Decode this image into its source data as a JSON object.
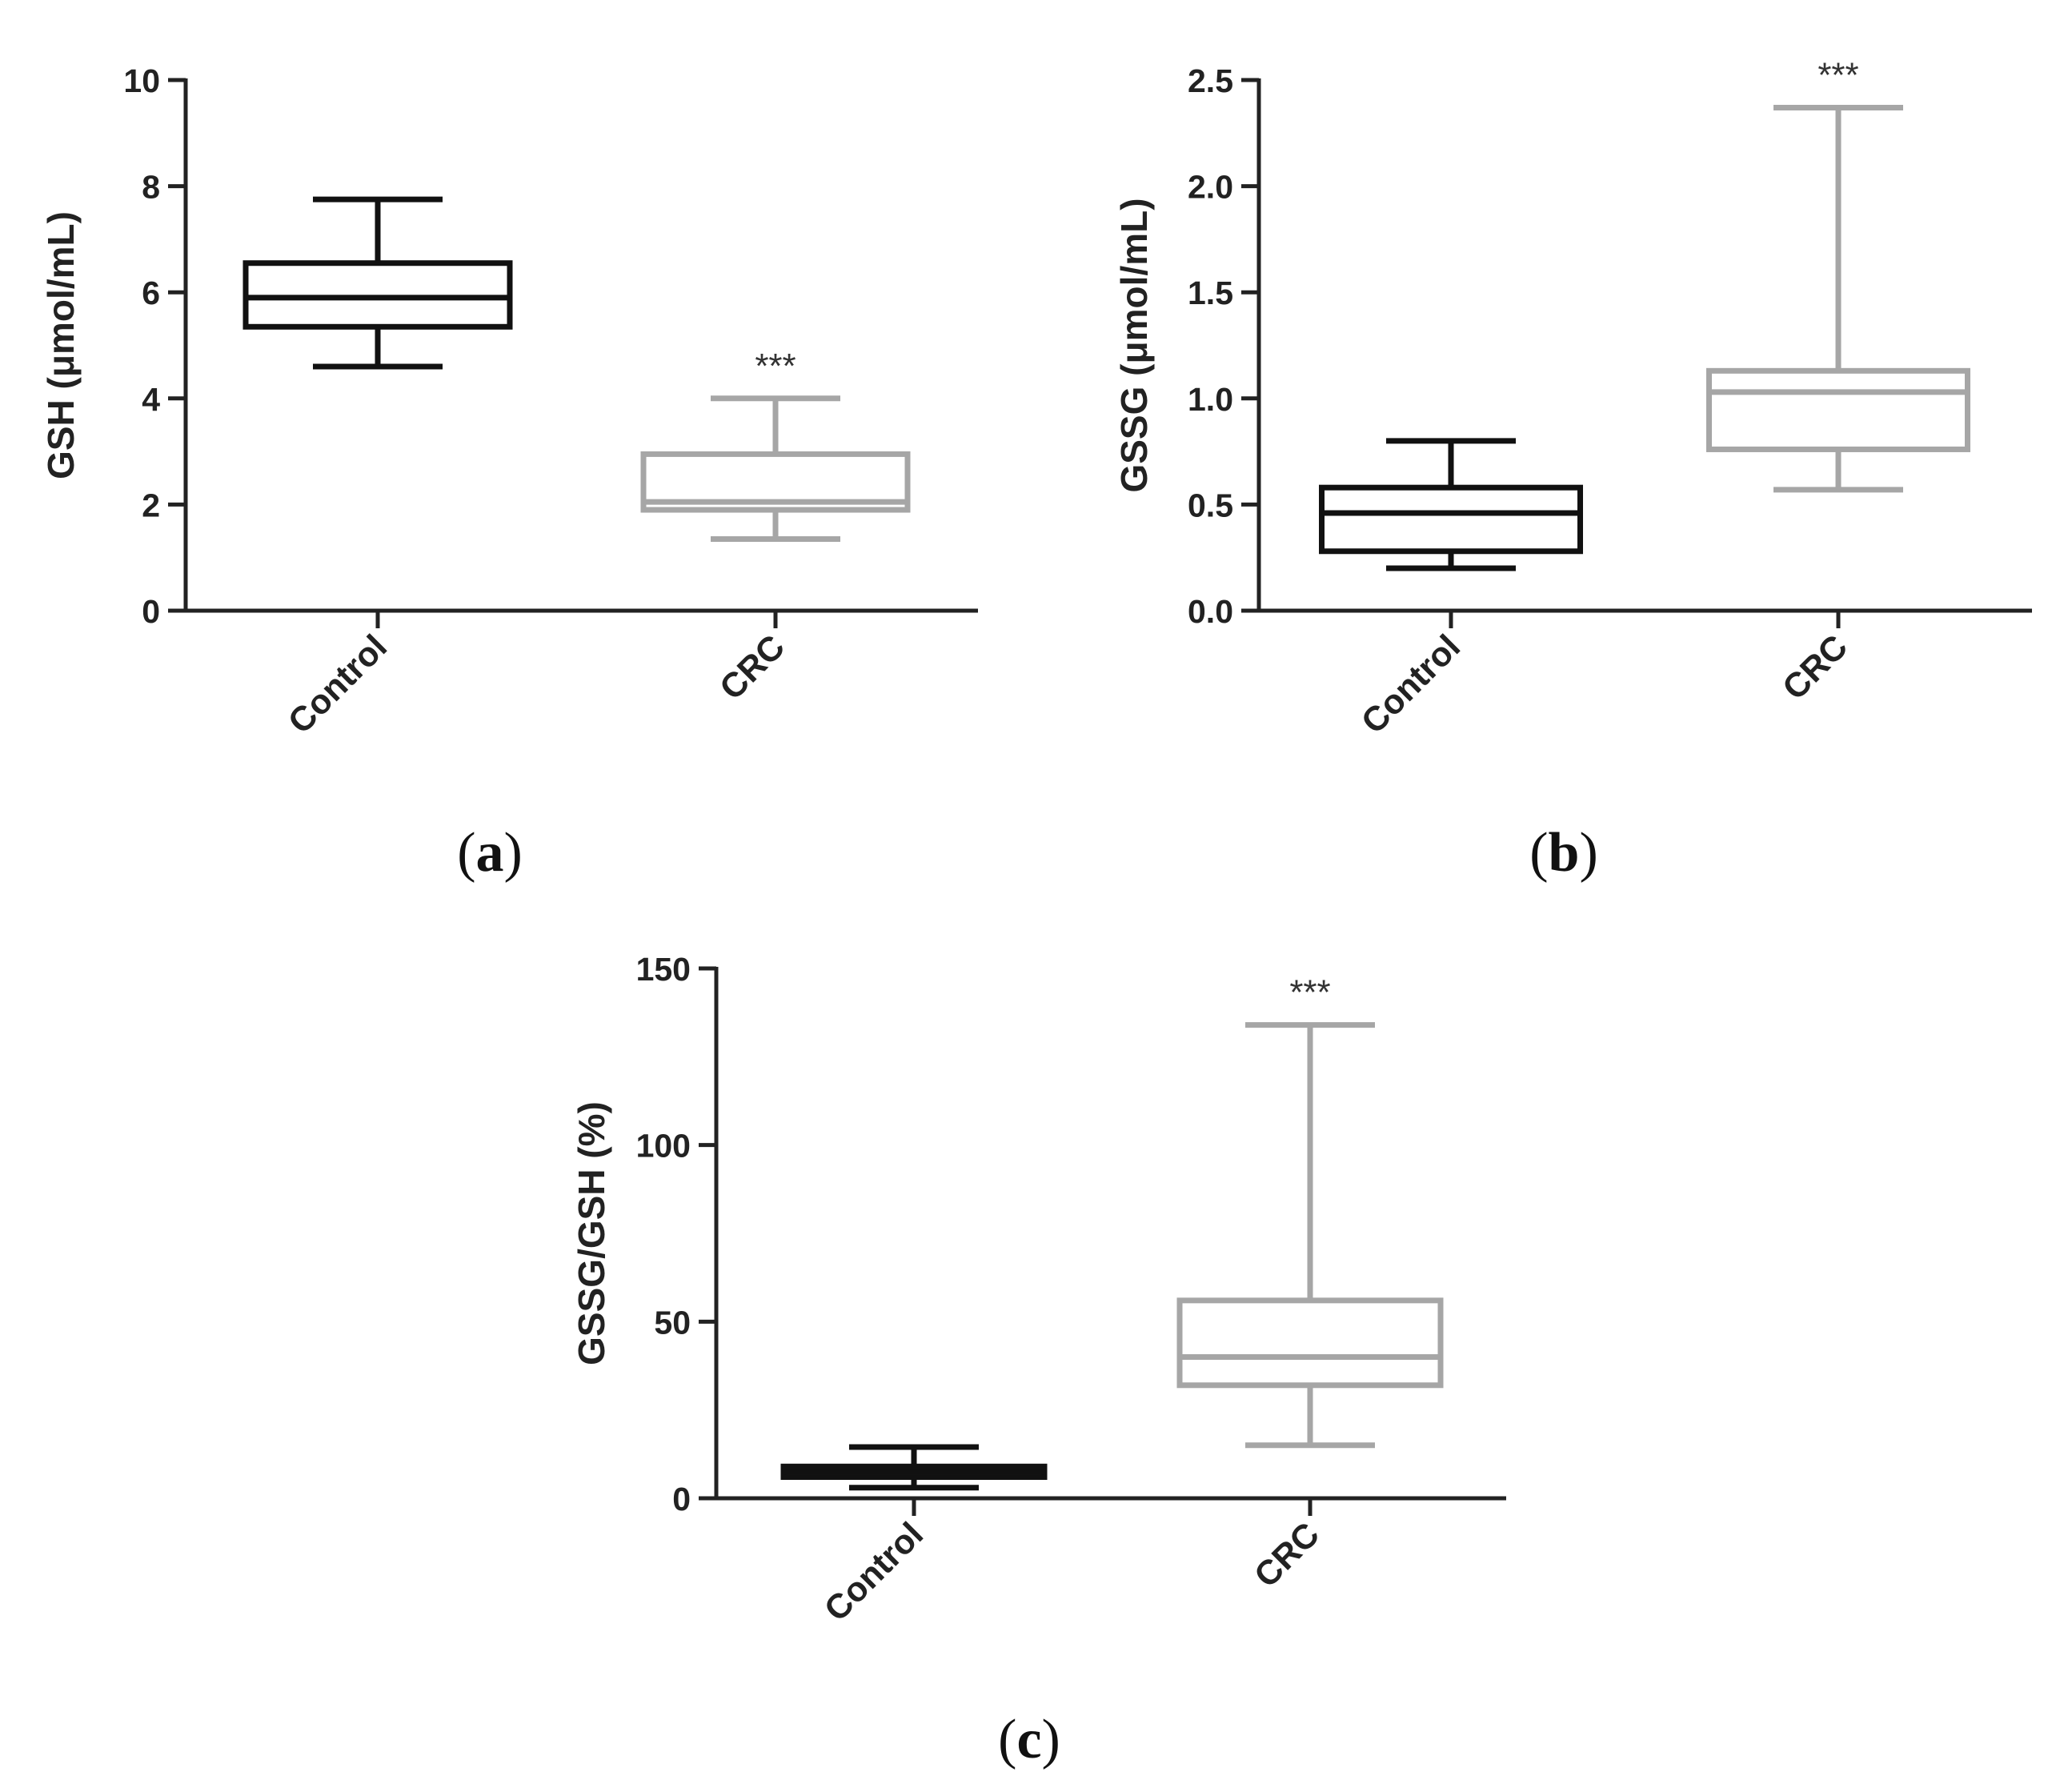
{
  "chart_data": [
    {
      "id": "a",
      "type": "boxplot",
      "panel_label": "a",
      "ylabel": "GSH (μmol/mL)",
      "ylim": [
        0,
        10
      ],
      "yticks": [
        0,
        2,
        4,
        6,
        8,
        10
      ],
      "ytick_labels": [
        "0",
        "2",
        "4",
        "6",
        "8",
        "10"
      ],
      "categories": [
        "Control",
        "CRC"
      ],
      "series": [
        {
          "name": "Control",
          "color": "#111111",
          "min": 4.6,
          "q1": 5.35,
          "median": 5.9,
          "q3": 6.55,
          "max": 7.75,
          "annotation": ""
        },
        {
          "name": "CRC",
          "color": "#a6a6a6",
          "min": 1.35,
          "q1": 1.9,
          "median": 2.05,
          "q3": 2.95,
          "max": 4.0,
          "annotation": "***"
        }
      ]
    },
    {
      "id": "b",
      "type": "boxplot",
      "panel_label": "b",
      "ylabel": "GSSG (μmol/mL)",
      "ylim": [
        0,
        2.5
      ],
      "yticks": [
        0,
        0.5,
        1.0,
        1.5,
        2.0,
        2.5
      ],
      "ytick_labels": [
        "0.0",
        "0.5",
        "1.0",
        "1.5",
        "2.0",
        "2.5"
      ],
      "categories": [
        "Control",
        "CRC"
      ],
      "series": [
        {
          "name": "Control",
          "color": "#111111",
          "min": 0.2,
          "q1": 0.28,
          "median": 0.46,
          "q3": 0.58,
          "max": 0.8,
          "annotation": ""
        },
        {
          "name": "CRC",
          "color": "#a6a6a6",
          "min": 0.57,
          "q1": 0.76,
          "median": 1.03,
          "q3": 1.13,
          "max": 2.37,
          "annotation": "***"
        }
      ]
    },
    {
      "id": "c",
      "type": "boxplot",
      "panel_label": "c",
      "ylabel": "GSSG/GSH (%)",
      "ylim": [
        0,
        150
      ],
      "yticks": [
        0,
        50,
        100,
        150
      ],
      "ytick_labels": [
        "0",
        "50",
        "100",
        "150"
      ],
      "categories": [
        "Control",
        "CRC"
      ],
      "series": [
        {
          "name": "Control",
          "color": "#111111",
          "min": 3,
          "q1": 6,
          "median": 7.5,
          "q3": 9,
          "max": 14.5,
          "annotation": ""
        },
        {
          "name": "CRC",
          "color": "#a6a6a6",
          "min": 15,
          "q1": 32,
          "median": 40,
          "q3": 56,
          "max": 134,
          "annotation": "***"
        }
      ]
    }
  ]
}
